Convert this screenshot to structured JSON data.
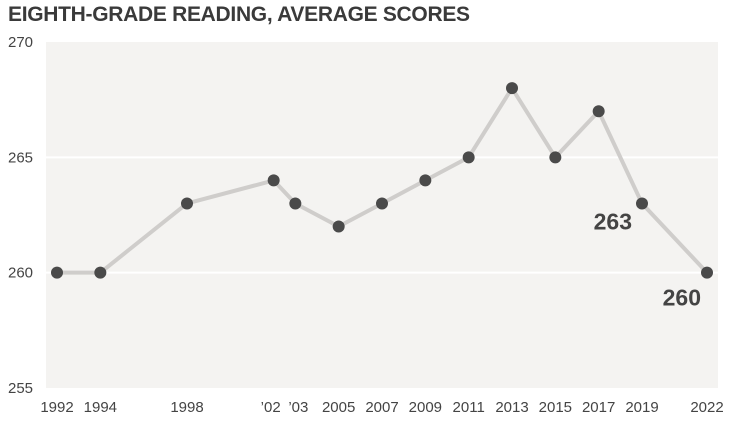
{
  "chart_data": {
    "type": "line",
    "title": "EIGHTH-GRADE READING, AVERAGE SCORES",
    "xlabel": "",
    "ylabel": "",
    "grid": true,
    "ylim": [
      255,
      270
    ],
    "yticks": [
      255,
      260,
      265,
      270
    ],
    "xlim": [
      1992,
      2022
    ],
    "x": [
      1992,
      1994,
      1998,
      2002,
      2003,
      2005,
      2007,
      2009,
      2011,
      2013,
      2015,
      2017,
      2019,
      2022
    ],
    "x_tick_labels": [
      "1992",
      "1994",
      "1998",
      "’02",
      "’03",
      "2005",
      "2007",
      "2009",
      "2011",
      "2013",
      "2015",
      "2017",
      "2019",
      "2022"
    ],
    "series": [
      {
        "values": [
          260,
          260,
          263,
          264,
          263,
          262,
          263,
          264,
          265,
          268,
          265,
          267,
          263,
          260
        ]
      }
    ],
    "annotations": [
      {
        "x": 2019,
        "text": "263"
      },
      {
        "x": 2022,
        "text": "260"
      }
    ],
    "colors": {
      "plot_bg": "#f4f3f1",
      "line": "#cfcdcb",
      "marker": "#4a4a4a",
      "grid": "#ffffff",
      "text": "#444444"
    }
  }
}
